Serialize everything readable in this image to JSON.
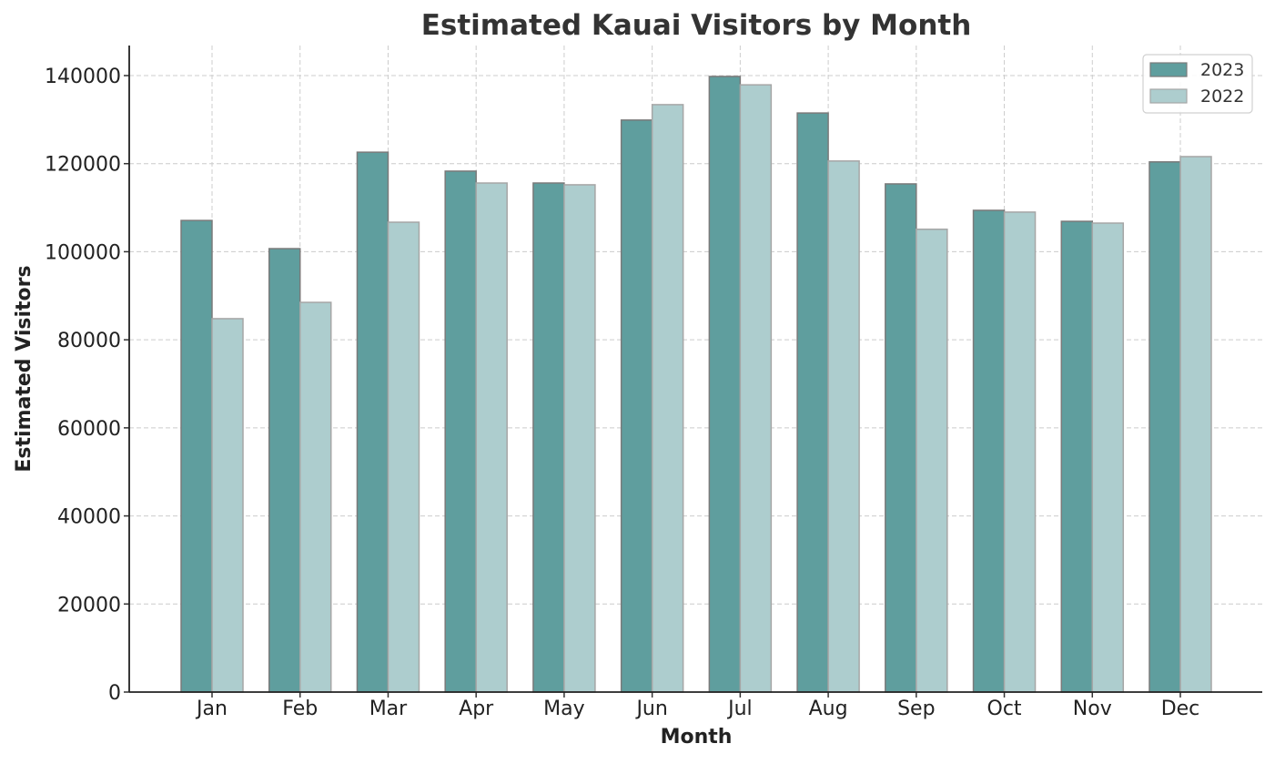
{
  "chart_data": {
    "type": "bar",
    "title": "Estimated Kauai Visitors by Month",
    "xlabel": "Month",
    "ylabel": "Estimated Visitors",
    "ylim": [
      0,
      147000
    ],
    "yticks": [
      0,
      20000,
      40000,
      60000,
      80000,
      100000,
      120000,
      140000
    ],
    "ytick_labels": [
      "0",
      "20000",
      "40000",
      "60000",
      "80000",
      "100000",
      "120000",
      "140000"
    ],
    "grid": true,
    "legend_position": "upper right",
    "categories": [
      "Jan",
      "Feb",
      "Mar",
      "Apr",
      "May",
      "Jun",
      "Jul",
      "Aug",
      "Sep",
      "Oct",
      "Nov",
      "Dec"
    ],
    "series": [
      {
        "name": "2023",
        "color": "#5f9e9e",
        "values": [
          107100,
          100700,
          122600,
          118300,
          115600,
          129900,
          139800,
          131500,
          115400,
          109400,
          106900,
          120400
        ]
      },
      {
        "name": "2022",
        "color": "#adcdce",
        "values": [
          84800,
          88500,
          106700,
          115600,
          115200,
          133400,
          137900,
          120600,
          105100,
          109000,
          106500,
          121600
        ]
      }
    ]
  }
}
